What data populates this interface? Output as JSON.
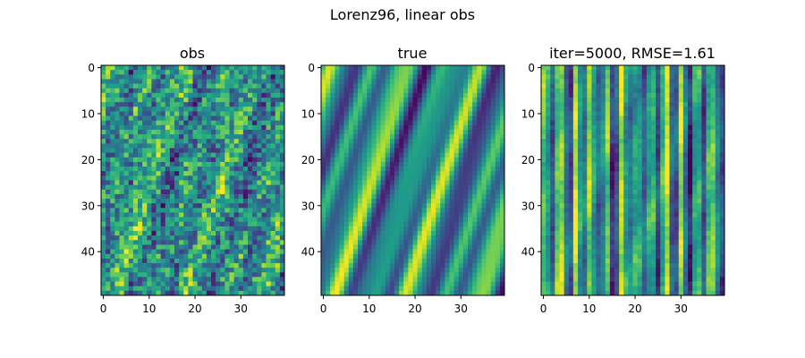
{
  "suptitle": "Lorenz96, linear obs",
  "chart_data": [
    {
      "type": "heatmap",
      "title": "obs",
      "rows": 50,
      "cols": 40,
      "x_ticks": [
        0,
        10,
        20,
        30
      ],
      "y_ticks": [
        0,
        10,
        20,
        30,
        40
      ],
      "xlim": [
        -0.5,
        39.5
      ],
      "ylim": [
        49.5,
        -0.5
      ],
      "colormap": "viridis",
      "pattern": "noisy observations of the Lorenz96 state (true field plus strong random noise)"
    },
    {
      "type": "heatmap",
      "title": "true",
      "rows": 50,
      "cols": 40,
      "x_ticks": [
        0,
        10,
        20,
        30
      ],
      "y_ticks": [
        0,
        10,
        20,
        30,
        40
      ],
      "xlim": [
        -0.5,
        39.5
      ],
      "ylim": [
        49.5,
        -0.5
      ],
      "colormap": "viridis",
      "pattern": "smooth diagonal wave bands drifting toward lower x as time (row) increases"
    },
    {
      "type": "heatmap",
      "title": "iter=5000, RMSE=1.61",
      "rows": 50,
      "cols": 40,
      "x_ticks": [
        0,
        10,
        20,
        30
      ],
      "y_ticks": [
        0,
        10,
        20,
        30,
        40
      ],
      "xlim": [
        -0.5,
        39.5
      ],
      "ylim": [
        49.5,
        -0.5
      ],
      "colormap": "viridis",
      "pattern": "reconstruction with mostly vertical streaks and weak diagonal structure"
    }
  ],
  "colors": {
    "viridis_stops": [
      "#440154",
      "#482878",
      "#3e4989",
      "#31688e",
      "#26828e",
      "#1f9e89",
      "#35b779",
      "#6ece58",
      "#b5de2b",
      "#fde725"
    ],
    "axis": "#000000",
    "background": "#ffffff"
  }
}
